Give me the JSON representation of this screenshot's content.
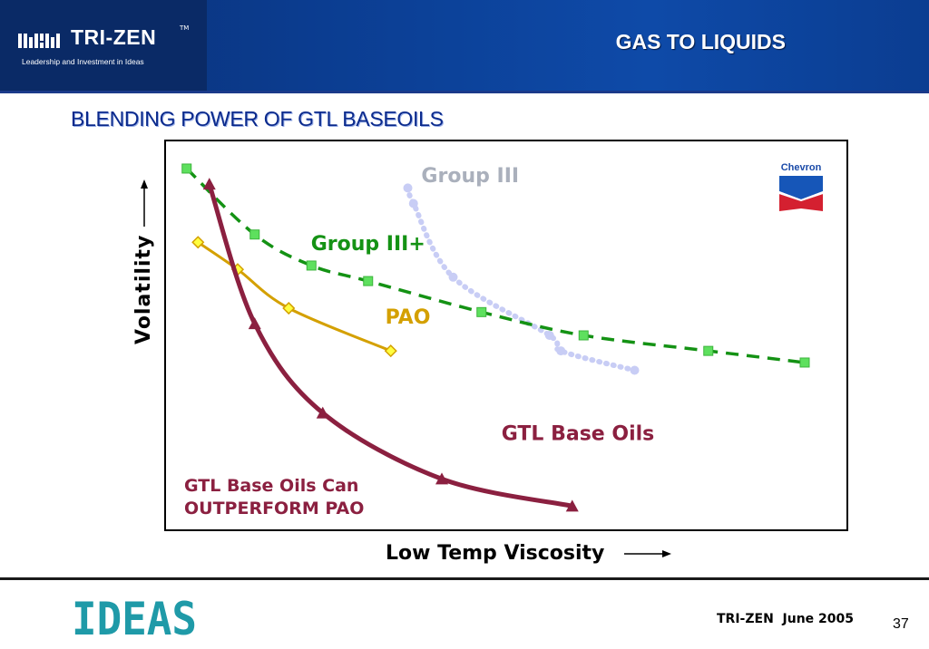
{
  "header": {
    "brand": "TRI-ZEN",
    "trademark": "TM",
    "tagline": "Leadership and Investment in Ideas",
    "title": "GAS TO LIQUIDS"
  },
  "slide": {
    "subtitle": "BLENDING POWER OF GTL BASEOILS"
  },
  "chart_data": {
    "type": "line",
    "title": "",
    "xlabel": "Low Temp Viscosity",
    "ylabel": "Volatility",
    "x_ticks": [],
    "y_ticks": [],
    "grid": false,
    "logo": "Chevron",
    "series": [
      {
        "name": "Group III",
        "color": "#c8cdf5",
        "style": "dotted",
        "marker": "circle",
        "points": [
          [
            4.2,
            88
          ],
          [
            4.3,
            84
          ],
          [
            5.0,
            65
          ],
          [
            6.7,
            50
          ],
          [
            6.9,
            46
          ],
          [
            8.2,
            41
          ]
        ]
      },
      {
        "name": "Group III+",
        "color": "#149214",
        "style": "dashed",
        "marker": "square",
        "points": [
          [
            0.3,
            93
          ],
          [
            1.5,
            76
          ],
          [
            2.5,
            68
          ],
          [
            3.5,
            64
          ],
          [
            5.5,
            56
          ],
          [
            7.3,
            50
          ],
          [
            9.5,
            46
          ],
          [
            11.2,
            43
          ]
        ]
      },
      {
        "name": "PAO",
        "color": "#d4a000",
        "style": "solid",
        "marker": "diamond",
        "points": [
          [
            0.5,
            74
          ],
          [
            1.2,
            67
          ],
          [
            2.1,
            57
          ],
          [
            3.9,
            46
          ]
        ]
      },
      {
        "name": "GTL Base Oils",
        "color": "#8b2040",
        "style": "solid",
        "marker": "triangle",
        "points": [
          [
            0.7,
            89
          ],
          [
            1.5,
            53
          ],
          [
            2.7,
            30
          ],
          [
            4.8,
            13
          ],
          [
            7.1,
            6
          ]
        ]
      }
    ],
    "annotations": [
      "GTL Base Oils Can",
      "OUTPERFORM PAO"
    ]
  },
  "footer": {
    "credit": "TRI-ZEN  June 2005",
    "page": "37",
    "logo_text": "IDEAS"
  }
}
